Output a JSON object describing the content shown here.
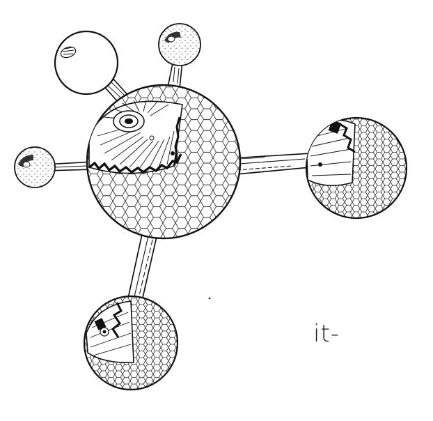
{
  "figure": {
    "fragment_text": "it-"
  },
  "colors": {
    "ink": "#111111",
    "paper": "#ffffff"
  }
}
